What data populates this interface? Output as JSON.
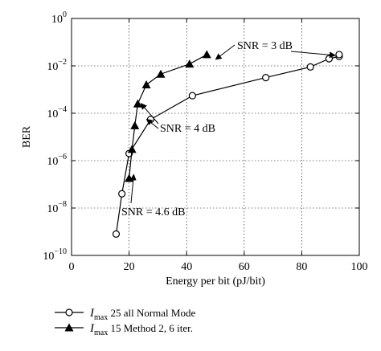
{
  "chart_data": {
    "type": "line",
    "xlabel": "Energy per bit (pJ/bit)",
    "ylabel": "BER",
    "xlim": [
      0,
      100
    ],
    "ylim_exp": [
      -10,
      0
    ],
    "yscale": "log",
    "grid": true,
    "x_ticks": [
      "0",
      "20",
      "40",
      "60",
      "80",
      "100"
    ],
    "y_tick_base": "10",
    "y_tick_exponents": [
      "0",
      "−2",
      "−4",
      "−6",
      "−8",
      "−10"
    ],
    "legend_position": "bottom-left, below plot",
    "series": [
      {
        "marker": "circle-open",
        "legend_parts": [
          "I",
          "max",
          " 25 all Normal Mode"
        ],
        "points": [
          {
            "x": 15.5,
            "y": 8e-10
          },
          {
            "x": 17.5,
            "y": 4e-08
          },
          {
            "x": 20,
            "y": 2e-06
          },
          {
            "x": 27.5,
            "y": 5.5e-05
          },
          {
            "x": 42,
            "y": 0.00055
          },
          {
            "x": 67.5,
            "y": 0.0032
          },
          {
            "x": 83,
            "y": 0.009
          },
          {
            "x": 89.5,
            "y": 0.02
          },
          {
            "x": 93,
            "y": 0.025
          },
          {
            "x": 93,
            "y": 0.03
          }
        ]
      },
      {
        "marker": "triangle-filled",
        "legend_parts": [
          "I",
          "max",
          " 15 Method 2, 6 iter."
        ],
        "points": [
          {
            "x": 20,
            "y": 1.8e-07
          },
          {
            "x": 21,
            "y": 3e-06
          },
          {
            "x": 22,
            "y": 3e-05
          },
          {
            "x": 23,
            "y": 0.00025
          },
          {
            "x": 26,
            "y": 0.0016
          },
          {
            "x": 31,
            "y": 0.0045
          },
          {
            "x": 41,
            "y": 0.012
          },
          {
            "x": 47,
            "y": 0.03
          }
        ]
      }
    ],
    "annotations": [
      {
        "id": "snr3",
        "text": "SNR = 3 dB",
        "anchor_x": 49,
        "anchor_y": 0.022,
        "anchor2_x": 93,
        "anchor2_y": 0.03
      },
      {
        "id": "snr4",
        "text": "SNR = 4 dB",
        "anchor_x": 23,
        "anchor_y": 0.0003,
        "anchor2_x": 27.5,
        "anchor2_y": 6e-05
      },
      {
        "id": "snr46",
        "text": "SNR = 4.6 dB",
        "anchor_x": 20.5,
        "anchor_y": 3e-07
      }
    ]
  }
}
